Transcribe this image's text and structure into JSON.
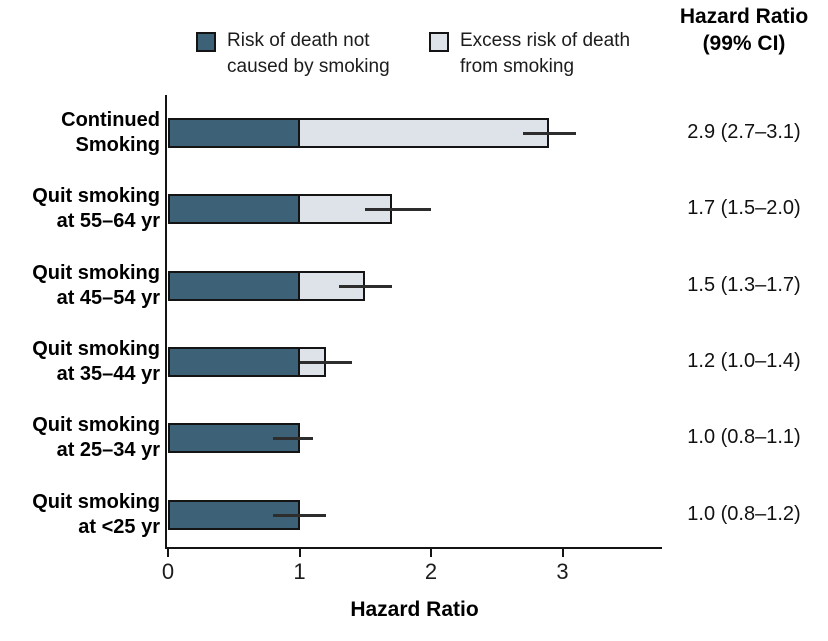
{
  "header": {
    "line1": "Hazard Ratio",
    "line2": "(99% CI)"
  },
  "legend": {
    "items": [
      {
        "name": "risk-death-not-smoking",
        "line1": "Risk of death not",
        "line2": "caused by smoking",
        "color": "#3d6177"
      },
      {
        "name": "excess-risk-from-smoking",
        "line1": "Excess risk of death",
        "line2": "from smoking",
        "color": "#dde3e9"
      }
    ]
  },
  "colors": {
    "dark_segment": "#3d6177",
    "light_segment": "#dde3e9",
    "outline": "#141414",
    "ci_line": "#2d2d2d"
  },
  "chart_data": {
    "type": "bar",
    "orientation": "horizontal",
    "stacked": true,
    "xlabel": "Hazard Ratio",
    "right_column_header": "Hazard Ratio (99% CI)",
    "xticks": [
      0,
      1,
      2,
      3
    ],
    "xlim": [
      0,
      3.75
    ],
    "grid": false,
    "legend_position": "top",
    "legend": [
      "Risk of death not caused by smoking",
      "Excess risk of death from smoking"
    ],
    "series": [
      {
        "name": "Risk of death not caused by smoking",
        "values": [
          1.0,
          1.0,
          1.0,
          1.0,
          1.0,
          1.0
        ]
      },
      {
        "name": "Excess risk of death from smoking",
        "values": [
          1.9,
          0.7,
          0.5,
          0.2,
          0.0,
          0.0
        ]
      }
    ],
    "rows": [
      {
        "label_line1": "Continued",
        "label_line2": "Smoking",
        "hr": 2.9,
        "ci_low": 2.7,
        "ci_high": 3.1,
        "value_text": "2.9 (2.7–3.1)"
      },
      {
        "label_line1": "Quit smoking",
        "label_line2": "at 55–64 yr",
        "hr": 1.7,
        "ci_low": 1.5,
        "ci_high": 2.0,
        "value_text": "1.7 (1.5–2.0)"
      },
      {
        "label_line1": "Quit smoking",
        "label_line2": "at 45–54 yr",
        "hr": 1.5,
        "ci_low": 1.3,
        "ci_high": 1.7,
        "value_text": "1.5 (1.3–1.7)"
      },
      {
        "label_line1": "Quit smoking",
        "label_line2": "at 35–44 yr",
        "hr": 1.2,
        "ci_low": 1.0,
        "ci_high": 1.4,
        "value_text": "1.2 (1.0–1.4)"
      },
      {
        "label_line1": "Quit smoking",
        "label_line2": "at 25–34 yr",
        "hr": 1.0,
        "ci_low": 0.8,
        "ci_high": 1.1,
        "value_text": "1.0 (0.8–1.1)"
      },
      {
        "label_line1": "Quit smoking",
        "label_line2": "at <25 yr",
        "hr": 1.0,
        "ci_low": 0.8,
        "ci_high": 1.2,
        "value_text": "1.0 (0.8–1.2)"
      }
    ]
  }
}
